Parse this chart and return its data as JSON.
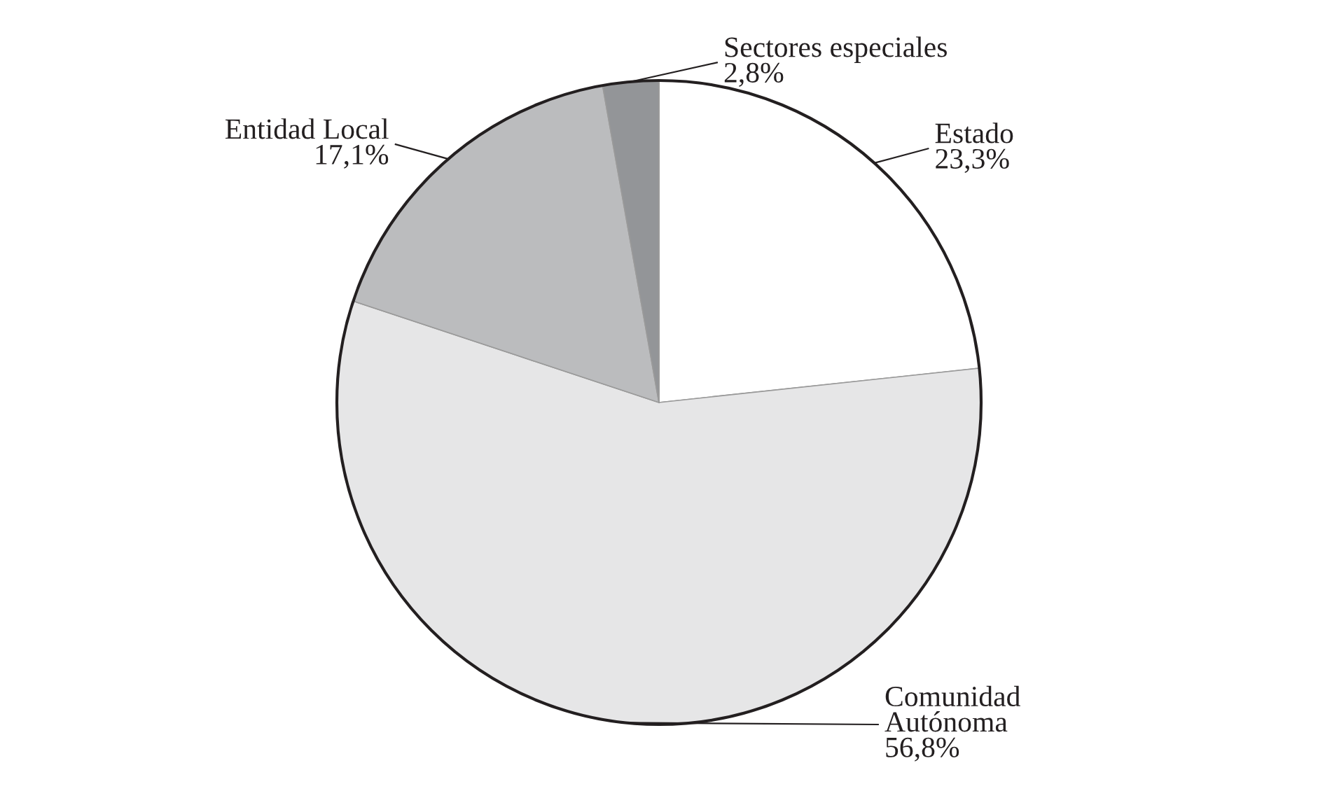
{
  "chart_data": {
    "type": "pie",
    "categories": [
      "Estado",
      "Comunidad\nAutónoma",
      "Entidad Local",
      "Sectores especiales"
    ],
    "values": [
      23.3,
      56.8,
      17.1,
      2.8
    ],
    "value_labels": [
      "23,3%",
      "56,8%",
      "17,1%",
      "2,8%"
    ],
    "colors": [
      "#ffffff",
      "#e6e6e7",
      "#bbbcbe",
      "#939598"
    ]
  }
}
